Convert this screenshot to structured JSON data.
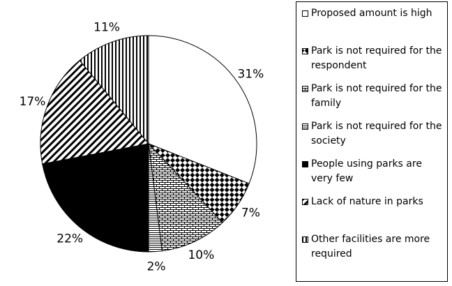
{
  "chart_data": {
    "type": "pie",
    "categories": [
      "Proposed amount is high",
      "Park is not required for the respondent",
      "Park is not required for the family",
      "Park is not required for the society",
      "People using parks are very few",
      "Lack of nature in parks",
      "Other facilities are more required"
    ],
    "values": [
      31,
      7,
      10,
      2,
      22,
      17,
      11
    ],
    "value_labels": [
      "31%",
      "7%",
      "10%",
      "2%",
      "22%",
      "17%",
      "11%"
    ],
    "patterns": [
      "white",
      "diamond",
      "brick",
      "hlines",
      "black",
      "diagonal",
      "vlines"
    ],
    "legend": "right"
  }
}
